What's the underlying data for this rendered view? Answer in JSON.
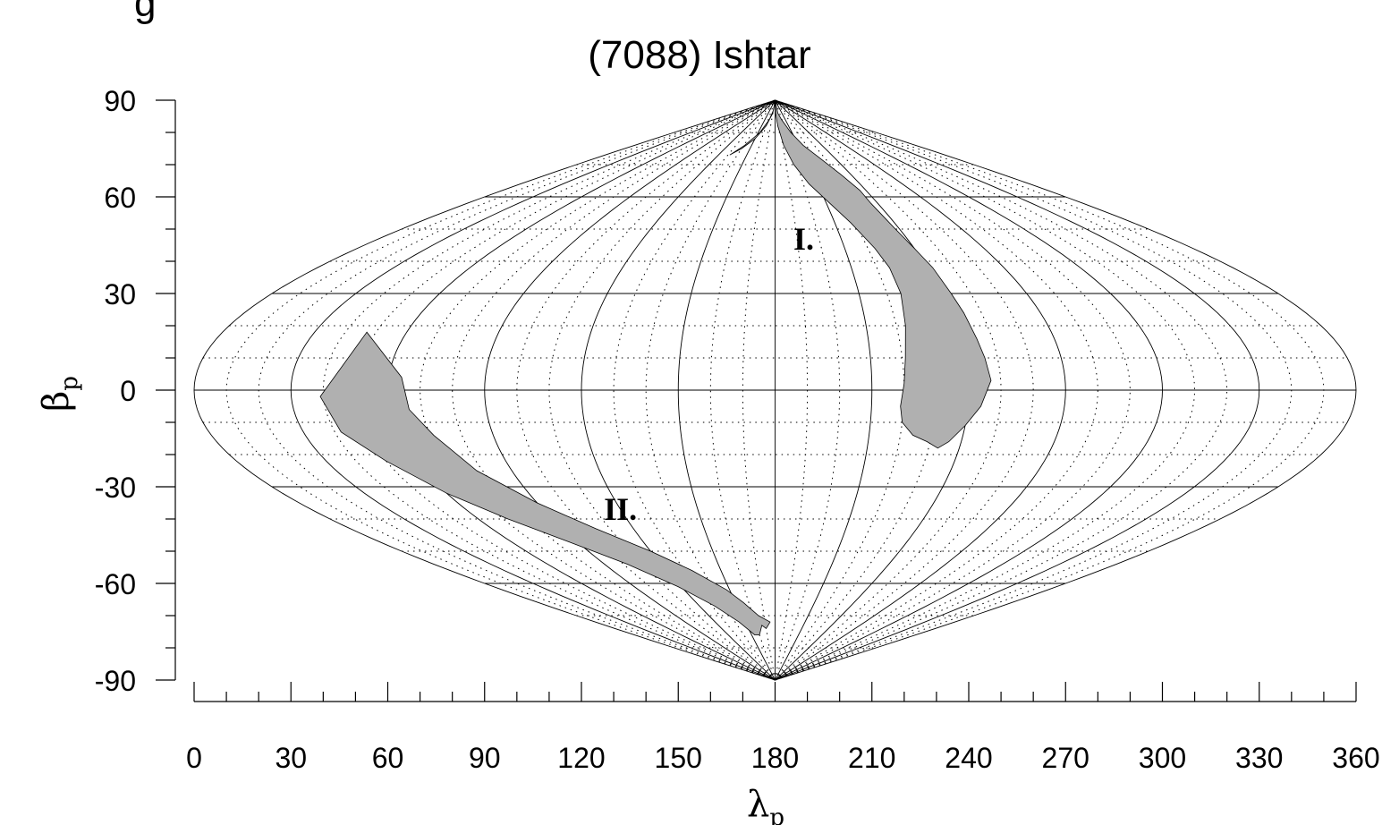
{
  "chart_data": {
    "type": "other",
    "projection": "sinusoidal",
    "title_lines": [
      "g",
      "(7088) Ishtar"
    ],
    "xlabel": "λ",
    "xlabel_sub": "p",
    "ylabel": "β",
    "ylabel_sub": "p",
    "xlim": [
      0,
      360
    ],
    "ylim": [
      -90,
      90
    ],
    "x_ticks": [
      0,
      30,
      60,
      90,
      120,
      150,
      180,
      210,
      240,
      270,
      300,
      330,
      360
    ],
    "y_ticks": [
      90,
      60,
      30,
      0,
      -30,
      -60,
      -90
    ],
    "grid_solid_step": 30,
    "grid_dotted_step": 10,
    "fill_color": "#b0b0b0",
    "regions": [
      {
        "name": "I.",
        "label_pos": [
          193,
          47
        ],
        "polygon": [
          [
            180,
            90
          ],
          [
            192,
            86
          ],
          [
            199,
            84
          ],
          [
            208,
            80
          ],
          [
            216,
            76
          ],
          [
            225,
            72
          ],
          [
            232,
            67
          ],
          [
            236,
            62
          ],
          [
            236,
            58
          ],
          [
            238,
            50
          ],
          [
            240,
            44
          ],
          [
            242,
            38
          ],
          [
            243,
            30
          ],
          [
            244,
            24
          ],
          [
            245,
            16
          ],
          [
            246,
            10
          ],
          [
            247,
            3
          ],
          [
            244,
            -5
          ],
          [
            240,
            -11
          ],
          [
            236,
            -16
          ],
          [
            233,
            -18
          ],
          [
            229,
            -16
          ],
          [
            224,
            -14
          ],
          [
            220,
            -10
          ],
          [
            219,
            -5
          ],
          [
            220,
            2
          ],
          [
            221,
            10
          ],
          [
            223,
            20
          ],
          [
            225,
            30
          ],
          [
            225,
            38
          ],
          [
            223,
            44
          ],
          [
            218,
            52
          ],
          [
            212,
            58
          ],
          [
            204,
            64
          ],
          [
            197,
            70
          ],
          [
            191,
            76
          ],
          [
            186,
            82
          ],
          [
            182,
            86
          ]
        ]
      },
      {
        "name": "II.",
        "label_pos": [
          120,
          -37
        ],
        "polygon": [
          [
            47,
            18
          ],
          [
            39,
            -2
          ],
          [
            42,
            -13
          ],
          [
            50,
            -22
          ],
          [
            60,
            -32
          ],
          [
            72,
            -40
          ],
          [
            86,
            -47
          ],
          [
            102,
            -54
          ],
          [
            118,
            -61
          ],
          [
            132,
            -67
          ],
          [
            144,
            -72
          ],
          [
            154,
            -76
          ],
          [
            160,
            -76
          ],
          [
            166,
            -73
          ],
          [
            170,
            -74
          ],
          [
            175,
            -72
          ],
          [
            165,
            -70
          ],
          [
            156,
            -66
          ],
          [
            148,
            -62
          ],
          [
            134,
            -56
          ],
          [
            120,
            -50
          ],
          [
            104,
            -43
          ],
          [
            90,
            -35
          ],
          [
            78,
            -25
          ],
          [
            71,
            -14
          ],
          [
            66,
            -6
          ],
          [
            64,
            4
          ]
        ]
      },
      {
        "name": "",
        "polygon": [
          [
            178,
            90
          ],
          [
            171,
            87
          ],
          [
            163,
            84
          ],
          [
            153,
            80
          ],
          [
            141,
            76
          ],
          [
            132,
            73
          ],
          [
            140,
            75
          ],
          [
            150,
            78
          ],
          [
            160,
            82
          ],
          [
            170,
            86
          ]
        ]
      }
    ]
  }
}
